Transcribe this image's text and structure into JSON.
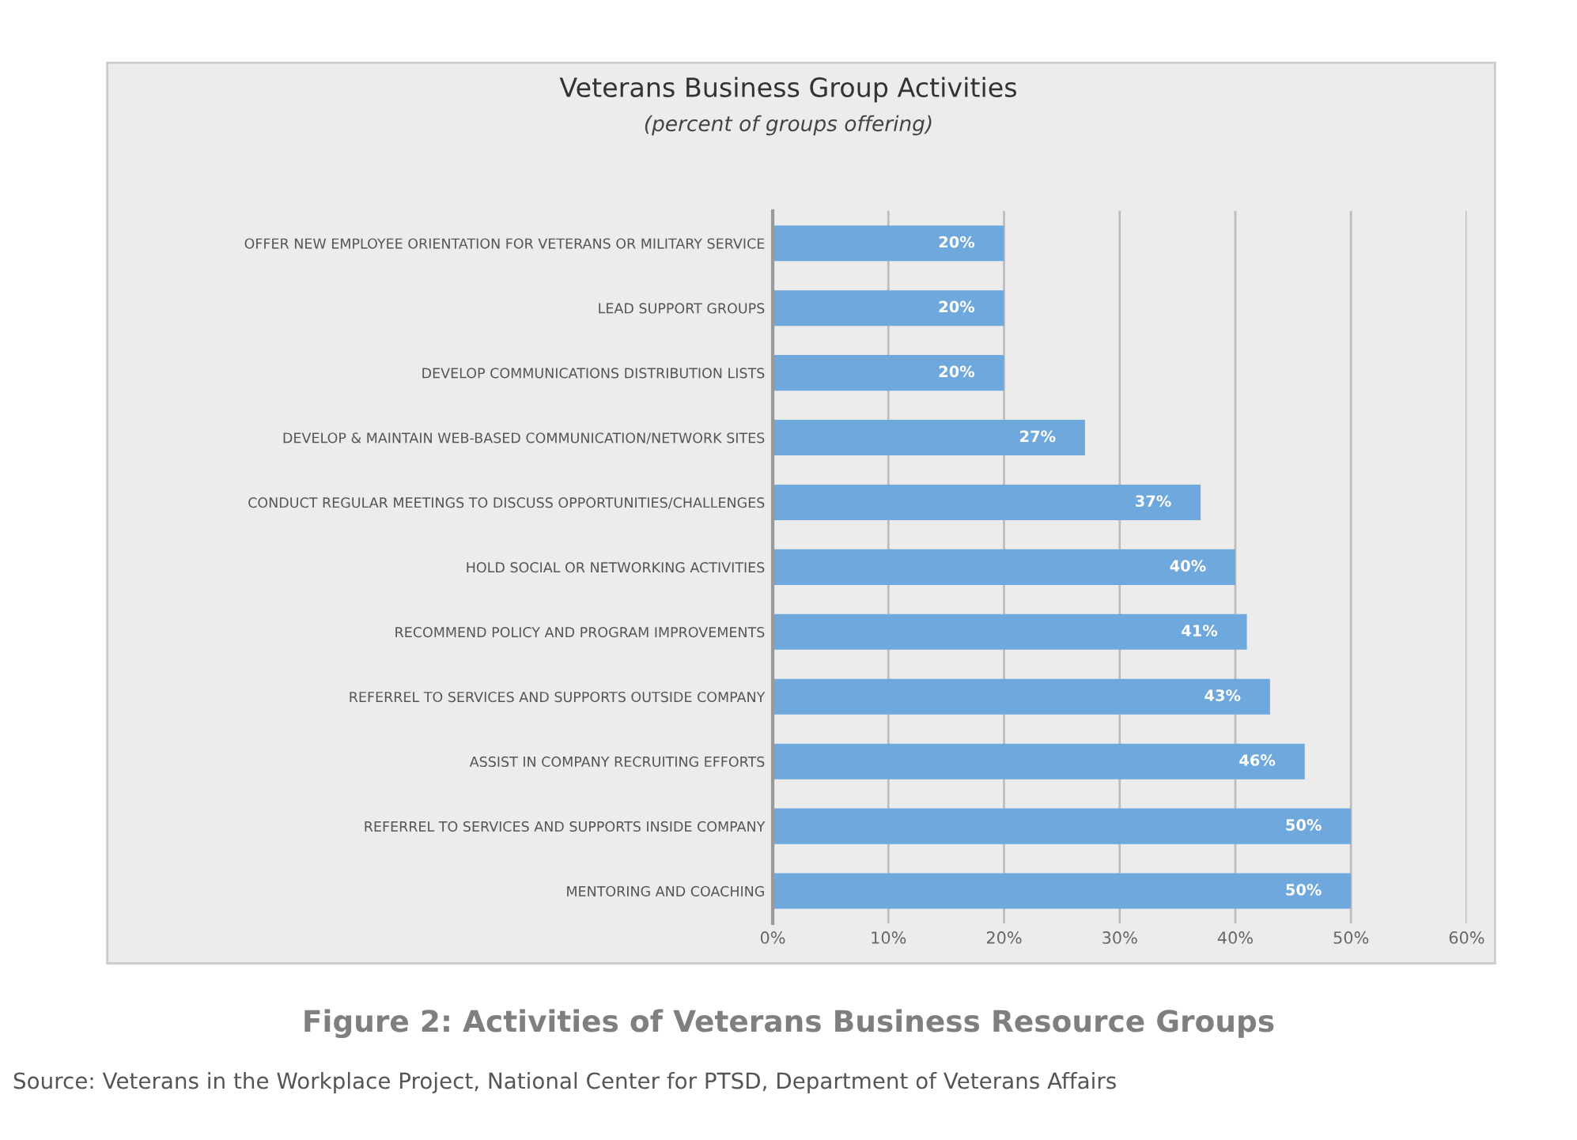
{
  "chart_data": {
    "type": "bar",
    "orientation": "horizontal",
    "title": "Veterans Business Group Activities",
    "subtitle": "(percent of groups offering)",
    "categories": [
      "OFFER NEW EMPLOYEE ORIENTATION FOR VETERANS OR MILITARY SERVICE",
      "LEAD SUPPORT GROUPS",
      "DEVELOP COMMUNICATIONS DISTRIBUTION LISTS",
      "DEVELOP & MAINTAIN WEB-BASED COMMUNICATION/NETWORK SITES",
      "CONDUCT REGULAR MEETINGS TO DISCUSS OPPORTUNITIES/CHALLENGES",
      "HOLD SOCIAL OR NETWORKING ACTIVITIES",
      "RECOMMEND POLICY AND PROGRAM IMPROVEMENTS",
      "REFERREL TO SERVICES AND SUPPORTS OUTSIDE COMPANY",
      "ASSIST IN COMPANY RECRUITING EFFORTS",
      "REFERREL TO SERVICES AND SUPPORTS INSIDE COMPANY",
      "MENTORING AND COACHING"
    ],
    "values": [
      20,
      20,
      20,
      27,
      37,
      40,
      41,
      43,
      46,
      50,
      50
    ],
    "value_labels": [
      "20%",
      "20%",
      "20%",
      "27%",
      "37%",
      "40%",
      "41%",
      "43%",
      "46%",
      "50%",
      "50%"
    ],
    "color": "#6fa8dc",
    "xlim": [
      0,
      60
    ],
    "xticks": [
      {
        "value": 0,
        "label": "0%"
      },
      {
        "value": 10,
        "label": "10%"
      },
      {
        "value": 20,
        "label": "20%"
      },
      {
        "value": 30,
        "label": "30%"
      },
      {
        "value": 40,
        "label": "40%"
      },
      {
        "value": 50,
        "label": "50%"
      },
      {
        "value": 60,
        "label": "60%"
      }
    ],
    "grid": "x",
    "annotations": [
      "Figure 2: Activities of Veterans Business Resource Groups",
      "Source: Veterans in the Workplace Project, National Center for PTSD, Department of Veterans Affairs"
    ]
  }
}
